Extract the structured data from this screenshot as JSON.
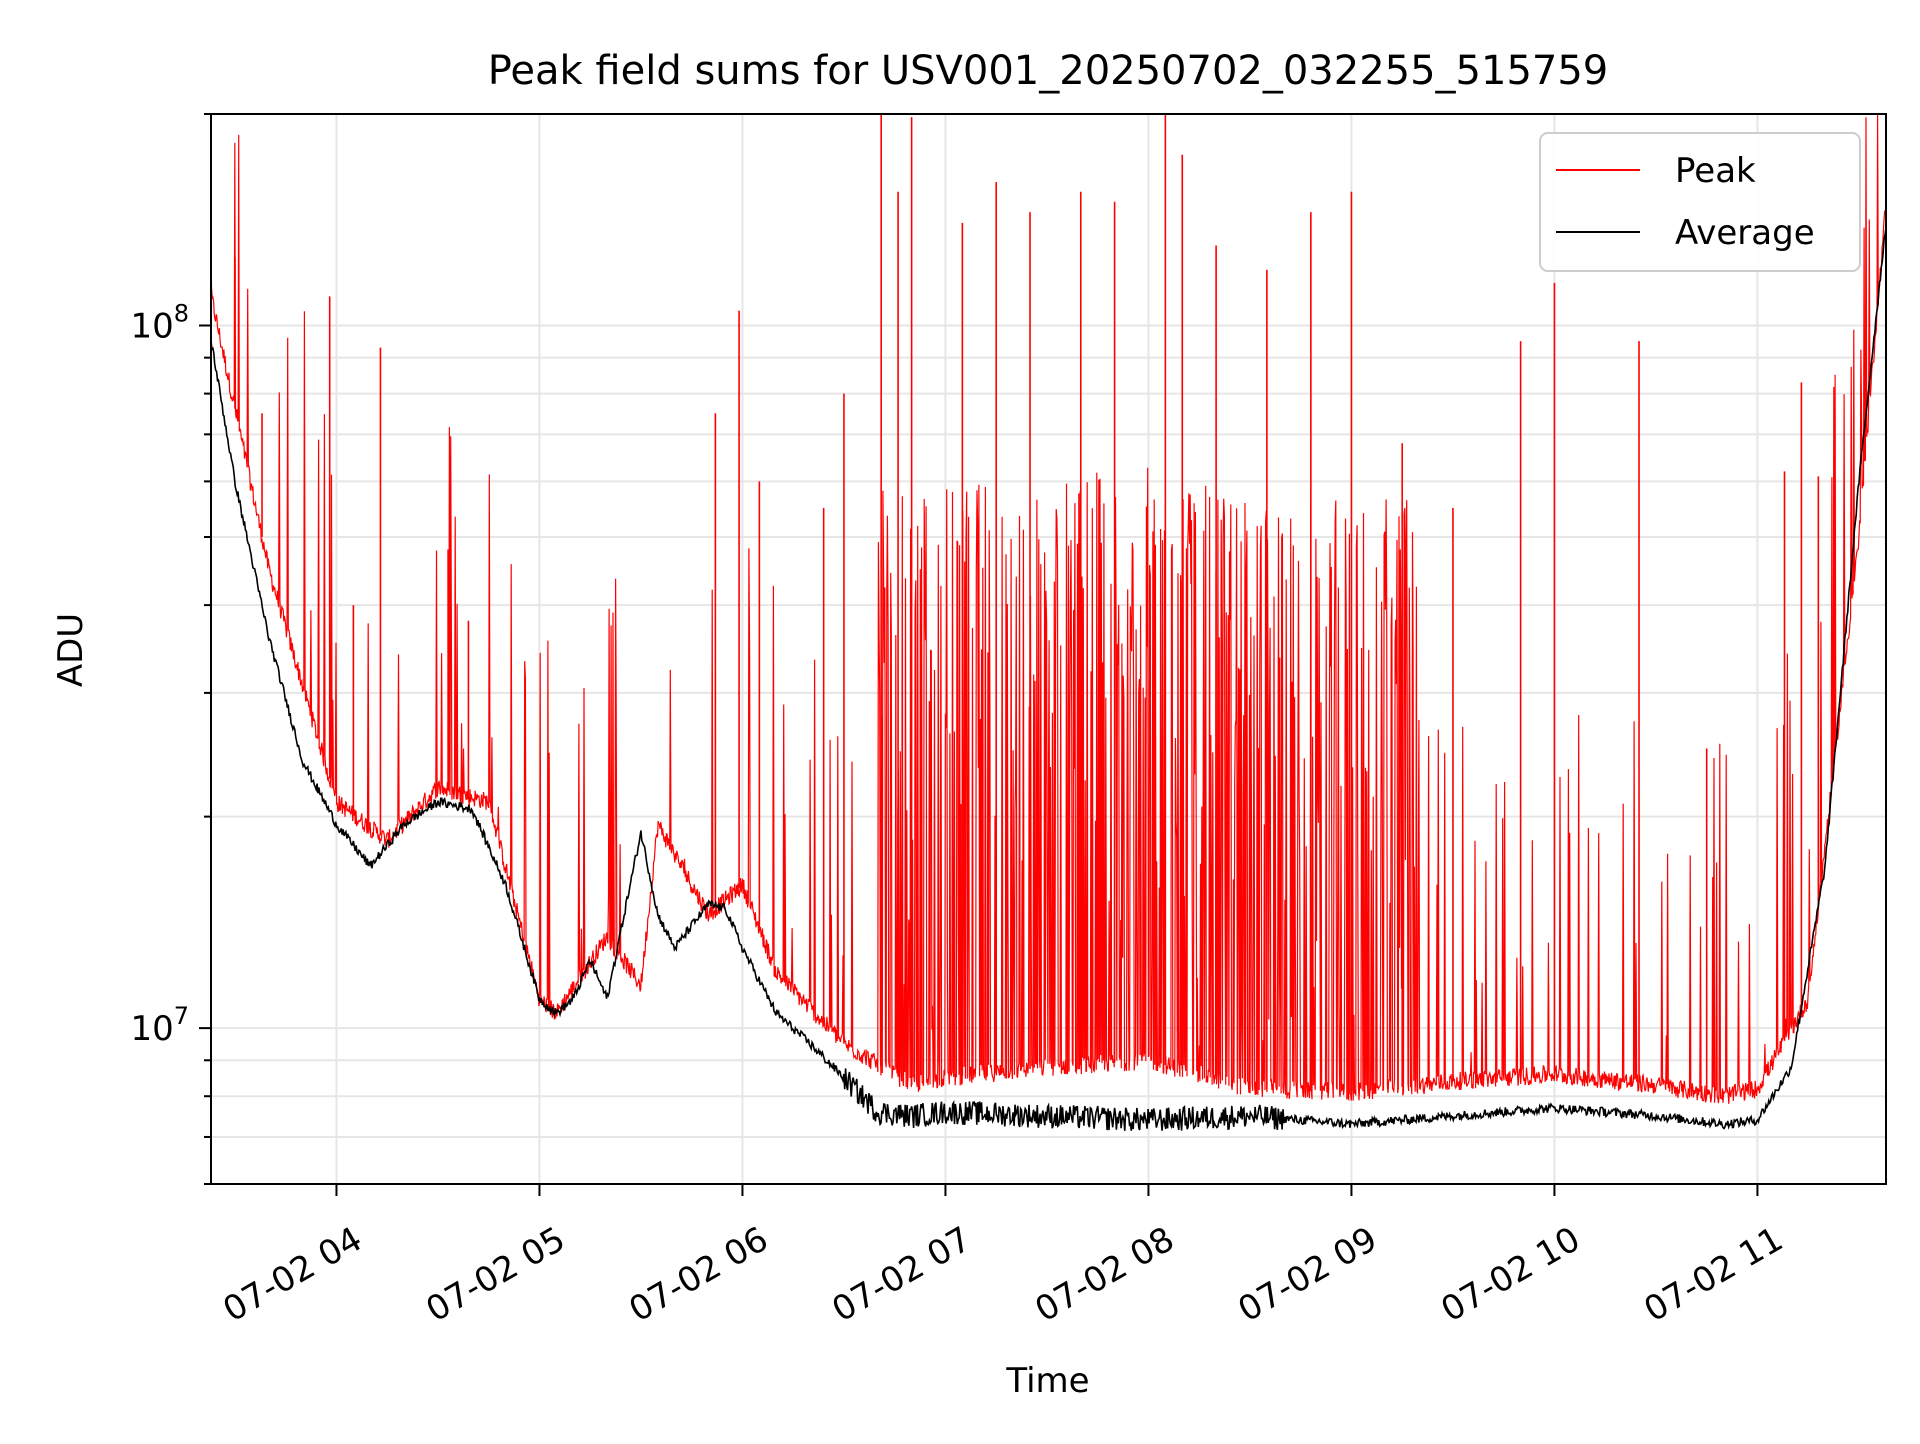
{
  "chart_data": {
    "type": "line",
    "title": "Peak field sums for USV001_20250702_032255_515759",
    "xlabel": "Time",
    "ylabel": "ADU",
    "yscale": "log",
    "xlim": [
      "2025-07-02 03:22:55",
      "2025-07-02 11:38:00"
    ],
    "ylim": [
      6000000,
      200000000
    ],
    "x_ticks": [
      "07-02 04",
      "07-02 05",
      "07-02 06",
      "07-02 07",
      "07-02 08",
      "07-02 09",
      "07-02 10",
      "07-02 11"
    ],
    "y_ticks": [
      "10^8",
      "10^7"
    ],
    "grid": true,
    "legend": "top-right",
    "series": [
      {
        "name": "Peak",
        "color": "#ff0000",
        "x": [
          "03:23",
          "03:40",
          "04:00",
          "04:15",
          "04:30",
          "04:45",
          "05:00",
          "05:05",
          "05:20",
          "05:30",
          "05:35",
          "05:50",
          "06:00",
          "06:10",
          "06:30",
          "06:50",
          "07:00",
          "07:30",
          "08:00",
          "08:30",
          "09:00",
          "09:30",
          "10:00",
          "10:30",
          "10:50",
          "11:00",
          "11:15",
          "11:30",
          "11:38"
        ],
        "values": [
          110000000,
          45000000,
          21000000,
          18500000,
          22000000,
          21000000,
          11000000,
          10500000,
          13500000,
          11500000,
          19500000,
          14500000,
          16000000,
          12000000,
          9500000,
          8300000,
          8500000,
          8800000,
          9000000,
          8200000,
          8100000,
          8400000,
          8600000,
          8300000,
          8000000,
          8200000,
          11000000,
          50000000,
          150000000
        ],
        "spikes": [
          {
            "x": "03:23",
            "value": 115000000
          },
          {
            "x": "03:30",
            "value": 125000000
          },
          {
            "x": "03:38",
            "value": 75000000
          },
          {
            "x": "03:58",
            "value": 110000000
          },
          {
            "x": "04:13",
            "value": 93000000
          },
          {
            "x": "04:05",
            "value": 40000000
          },
          {
            "x": "04:33",
            "value": 48000000
          },
          {
            "x": "04:39",
            "value": 38000000
          },
          {
            "x": "05:52",
            "value": 75000000
          },
          {
            "x": "05:59",
            "value": 105000000
          },
          {
            "x": "06:05",
            "value": 60000000
          },
          {
            "x": "06:24",
            "value": 55000000
          },
          {
            "x": "06:30",
            "value": 80000000
          },
          {
            "x": "06:41",
            "value": 200000000
          },
          {
            "x": "06:46",
            "value": 155000000
          },
          {
            "x": "06:50",
            "value": 198000000
          },
          {
            "x": "07:05",
            "value": 140000000
          },
          {
            "x": "07:15",
            "value": 160000000
          },
          {
            "x": "07:25",
            "value": 145000000
          },
          {
            "x": "07:40",
            "value": 155000000
          },
          {
            "x": "07:50",
            "value": 150000000
          },
          {
            "x": "08:05",
            "value": 200000000
          },
          {
            "x": "08:10",
            "value": 175000000
          },
          {
            "x": "08:20",
            "value": 130000000
          },
          {
            "x": "08:35",
            "value": 120000000
          },
          {
            "x": "08:48",
            "value": 145000000
          },
          {
            "x": "09:00",
            "value": 155000000
          },
          {
            "x": "09:15",
            "value": 68000000
          },
          {
            "x": "09:30",
            "value": 55000000
          },
          {
            "x": "09:50",
            "value": 95000000
          },
          {
            "x": "10:00",
            "value": 115000000
          },
          {
            "x": "10:25",
            "value": 95000000
          },
          {
            "x": "10:45",
            "value": 25000000
          },
          {
            "x": "11:08",
            "value": 62000000
          },
          {
            "x": "11:13",
            "value": 83000000
          },
          {
            "x": "11:18",
            "value": 61000000
          }
        ]
      },
      {
        "name": "Average",
        "color": "#000000",
        "x": [
          "03:23",
          "03:30",
          "03:40",
          "03:50",
          "04:00",
          "04:10",
          "04:20",
          "04:30",
          "04:40",
          "04:50",
          "05:00",
          "05:05",
          "05:10",
          "05:15",
          "05:20",
          "05:25",
          "05:30",
          "05:35",
          "05:40",
          "05:45",
          "05:50",
          "05:55",
          "06:00",
          "06:10",
          "06:20",
          "06:30",
          "06:40",
          "06:50",
          "07:00",
          "07:30",
          "08:00",
          "08:30",
          "09:00",
          "09:30",
          "10:00",
          "10:30",
          "10:50",
          "11:00",
          "11:10",
          "11:20",
          "11:30",
          "11:38"
        ],
        "values": [
          95000000,
          60000000,
          36000000,
          24000000,
          19500000,
          17000000,
          19500000,
          21000000,
          20500000,
          16000000,
          11000000,
          10500000,
          11000000,
          12500000,
          11000000,
          14500000,
          19000000,
          14500000,
          13000000,
          14000000,
          15000000,
          14800000,
          13000000,
          10500000,
          9500000,
          8500000,
          7600000,
          7500000,
          7600000,
          7500000,
          7400000,
          7500000,
          7300000,
          7500000,
          7700000,
          7500000,
          7300000,
          7400000,
          8800000,
          17000000,
          60000000,
          140000000
        ]
      }
    ]
  }
}
